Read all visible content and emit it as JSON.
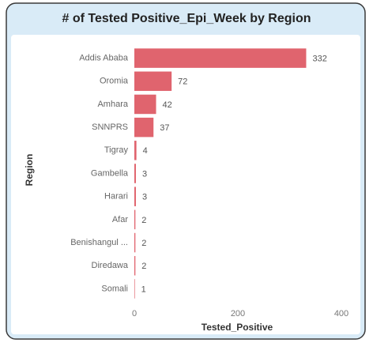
{
  "chart_data": {
    "type": "bar",
    "orientation": "horizontal",
    "title": "# of Tested Positive_Epi_Week by Region",
    "x_label": "Tested_Positive",
    "y_label": "Region",
    "categories": [
      "Addis Ababa",
      "Oromia",
      "Amhara",
      "SNNPRS",
      "Tigray",
      "Gambella",
      "Harari",
      "Afar",
      "Benishangul ...",
      "Diredawa",
      "Somali"
    ],
    "values": [
      332,
      72,
      42,
      37,
      4,
      3,
      3,
      2,
      2,
      2,
      1
    ],
    "color": "#e0646e",
    "xlim": [
      0,
      400
    ],
    "xticks": [
      0,
      200,
      400
    ],
    "grid": false
  }
}
